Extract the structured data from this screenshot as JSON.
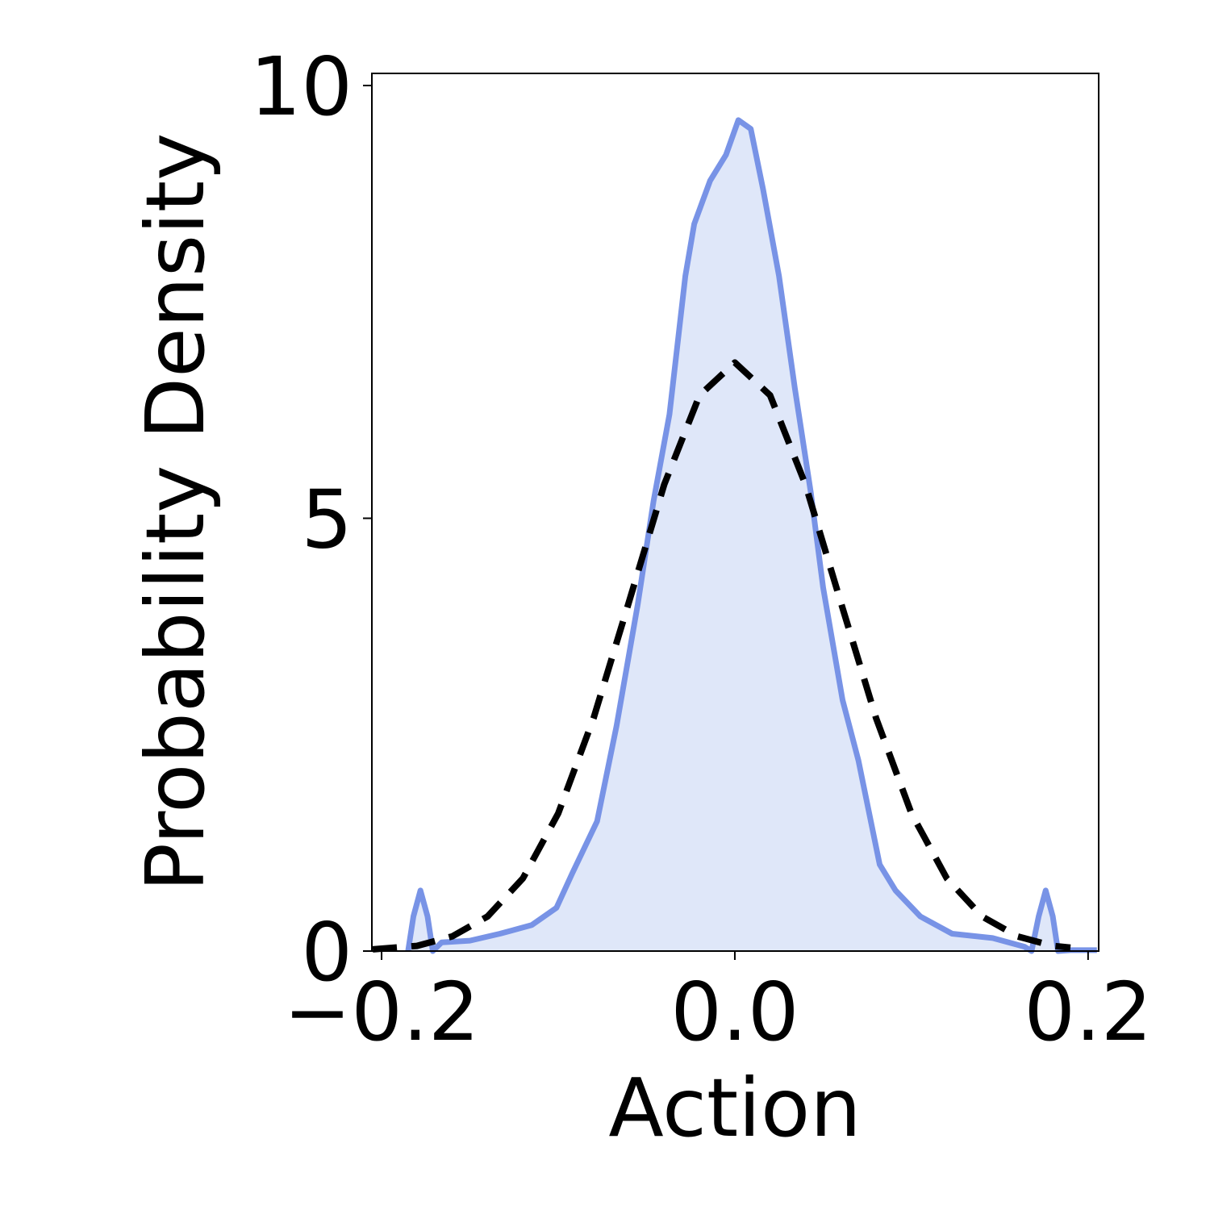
{
  "chart_data": {
    "type": "line",
    "x_label": "Action",
    "y_label": "Probability Density",
    "xlim": [
      -0.2055,
      0.206
    ],
    "ylim": [
      0,
      10.14
    ],
    "xticks": [
      {
        "value": -0.2,
        "label": "−0.2"
      },
      {
        "value": 0.0,
        "label": "0.0"
      },
      {
        "value": 0.2,
        "label": "0.2"
      }
    ],
    "yticks": [
      0,
      5,
      10
    ],
    "series": [
      {
        "color": "#7893e6",
        "fill": "#dfe7f9",
        "style": "solid",
        "x": [
          -0.185,
          -0.182,
          -0.178,
          -0.174,
          -0.171,
          -0.166,
          -0.15,
          -0.133,
          -0.115,
          -0.101,
          -0.092,
          -0.078,
          -0.067,
          -0.055,
          -0.046,
          -0.037,
          -0.028,
          -0.023,
          -0.014,
          -0.005,
          0.002,
          0.009,
          0.016,
          0.025,
          0.034,
          0.043,
          0.05,
          0.061,
          0.07,
          0.082,
          0.091,
          0.105,
          0.123,
          0.146,
          0.164,
          0.168,
          0.172,
          0.176,
          0.18,
          0.183,
          0.19,
          0.205
        ],
        "values": [
          0,
          0.4,
          0.7,
          0.4,
          0,
          0.1,
          0.12,
          0.2,
          0.3,
          0.5,
          0.9,
          1.5,
          2.6,
          4.0,
          5.2,
          6.2,
          7.8,
          8.4,
          8.9,
          9.2,
          9.6,
          9.5,
          8.8,
          7.8,
          6.5,
          5.3,
          4.2,
          2.9,
          2.2,
          1.0,
          0.7,
          0.4,
          0.2,
          0.15,
          0.05,
          0,
          0.4,
          0.7,
          0.4,
          0,
          0.01,
          0.01
        ]
      },
      {
        "color": "#000000",
        "style": "dashed",
        "x": [
          -0.205,
          -0.18,
          -0.16,
          -0.14,
          -0.12,
          -0.1,
          -0.08,
          -0.06,
          -0.04,
          -0.02,
          0,
          0.02,
          0.04,
          0.06,
          0.08,
          0.1,
          0.12,
          0.14,
          0.16,
          0.18,
          0.19
        ],
        "values": [
          0.02,
          0.06,
          0.17,
          0.4,
          0.84,
          1.59,
          2.69,
          4.03,
          5.39,
          6.42,
          6.8,
          6.42,
          5.39,
          4.03,
          2.69,
          1.59,
          0.84,
          0.4,
          0.17,
          0.06,
          0.04
        ]
      }
    ]
  }
}
